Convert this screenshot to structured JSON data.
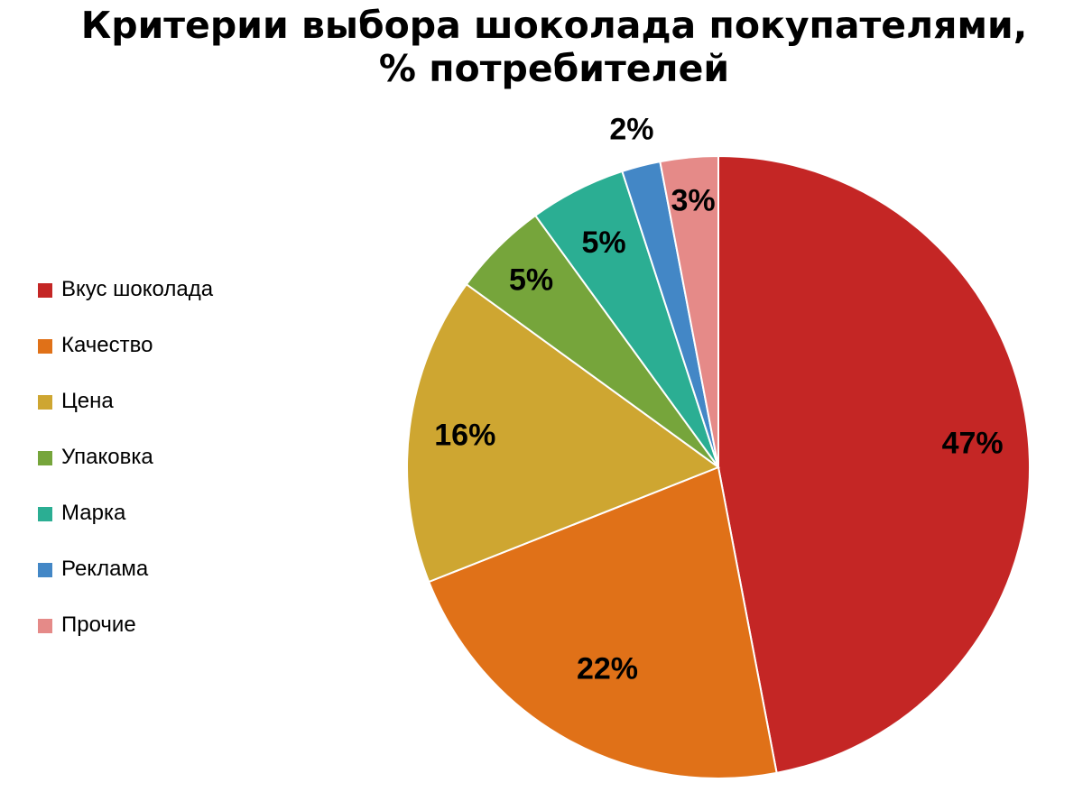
{
  "title_line1": "Критерии выбора шоколада покупателями,",
  "title_line2": "% потребителей",
  "chart_data": {
    "type": "pie",
    "title": "Критерии выбора шоколада покупателями, % потребителей",
    "start_angle_deg": 0,
    "direction": "clockwise",
    "legend_position": "left",
    "slices": [
      {
        "name": "Вкус шоколада",
        "value": 47,
        "label": "47%",
        "color": "#C42625"
      },
      {
        "name": "Качество",
        "value": 22,
        "label": "22%",
        "color": "#E07118"
      },
      {
        "name": "Цена",
        "value": 16,
        "label": "16%",
        "color": "#CEA631"
      },
      {
        "name": "Упаковка",
        "value": 5,
        "label": "5%",
        "color": "#76A53B"
      },
      {
        "name": "Марка",
        "value": 5,
        "label": "5%",
        "color": "#2BAE93"
      },
      {
        "name": "Реклама",
        "value": 2,
        "label": "2%",
        "color": "#4387C6"
      },
      {
        "name": "Прочие",
        "value": 3,
        "label": "3%",
        "color": "#E58A88"
      }
    ]
  }
}
